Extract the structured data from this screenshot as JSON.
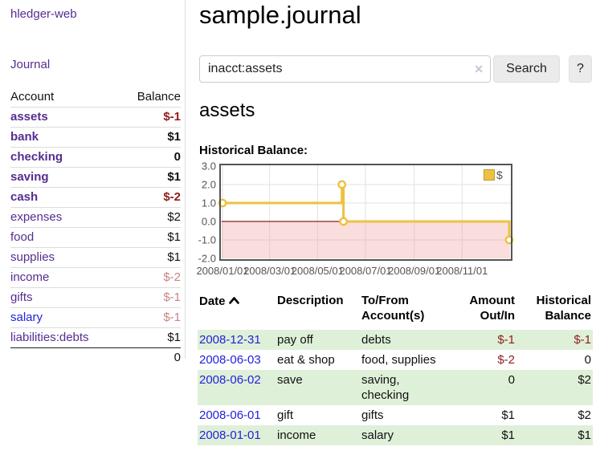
{
  "brand": "hledger-web",
  "nav": {
    "journal": "Journal"
  },
  "sidebar": {
    "headers": {
      "account": "Account",
      "balance": "Balance"
    },
    "accounts": [
      {
        "name": "assets",
        "level": 1,
        "bold": true,
        "balance": "$-1",
        "link_style": "purple"
      },
      {
        "name": "bank",
        "level": 2,
        "bold": true,
        "balance": "$1",
        "link_style": "purple"
      },
      {
        "name": "checking",
        "level": 3,
        "bold": true,
        "balance": "0",
        "link_style": "purple"
      },
      {
        "name": "saving",
        "level": 3,
        "bold": true,
        "balance": "$1",
        "link_style": "purple"
      },
      {
        "name": "cash",
        "level": 2,
        "bold": true,
        "balance": "$-2",
        "link_style": "purple"
      },
      {
        "name": "expenses",
        "level": 1,
        "bold": false,
        "balance": "$2",
        "link_style": "purple"
      },
      {
        "name": "food",
        "level": 2,
        "bold": false,
        "balance": "$1",
        "link_style": "purple"
      },
      {
        "name": "supplies",
        "level": 2,
        "bold": false,
        "balance": "$1",
        "link_style": "purple"
      },
      {
        "name": "income",
        "level": 1,
        "bold": false,
        "balance": "$-2",
        "link_style": "purple"
      },
      {
        "name": "gifts",
        "level": 2,
        "bold": false,
        "balance": "$-1",
        "link_style": "purple"
      },
      {
        "name": "salary",
        "level": 2,
        "bold": false,
        "balance": "$-1",
        "link_style": "blue"
      },
      {
        "name": "liabilities:debts",
        "level": 1,
        "bold": false,
        "balance": "$1",
        "link_style": "purple"
      }
    ],
    "total": "0"
  },
  "header": {
    "title": "sample.journal"
  },
  "search": {
    "value": "inacct:assets",
    "button_label": "Search",
    "help_label": "?",
    "clear_icon": "✕"
  },
  "account_view": {
    "title": "assets",
    "chart_heading": "Historical Balance:"
  },
  "chart_data": {
    "type": "line",
    "mode": "steps",
    "title": "Historical Balance",
    "x": [
      "2008/01/01",
      "2008/06/01",
      "2008/06/03",
      "2008/12/31"
    ],
    "series": [
      {
        "name": "$",
        "color": "#edc240",
        "values": [
          1.0,
          2.0,
          0.0,
          -1.0
        ]
      }
    ],
    "xticks": [
      "2008/01/01",
      "2008/03/01",
      "2008/05/01",
      "2008/07/01",
      "2008/09/01",
      "2008/11/01"
    ],
    "yticks": [
      3.0,
      2.0,
      1.0,
      0.0,
      -1.0,
      -2.0
    ],
    "ylim": [
      -2.0,
      3.0
    ],
    "xlim": [
      "2008/01/01",
      "2008/12/31"
    ],
    "grid": true,
    "legend_position": "top-right",
    "legend": [
      {
        "label": "$",
        "color": "#edc240"
      }
    ],
    "negative_region_highlight": true,
    "zero_line_color": "#8b1a1a",
    "axis_text_color": "#545454"
  },
  "register": {
    "headers": {
      "date": "Date",
      "description": "Description",
      "accounts": "To/From Account(s)",
      "amount": "Amount Out/In",
      "balance": "Historical Balance"
    },
    "rows": [
      {
        "date": "2008-12-31",
        "description": "pay off",
        "accounts": "debts",
        "amount": "$-1",
        "balance": "$-1",
        "shaded": true
      },
      {
        "date": "2008-06-03",
        "description": "eat & shop",
        "accounts": "food, supplies",
        "amount": "$-2",
        "balance": "0",
        "shaded": false
      },
      {
        "date": "2008-06-02",
        "description": "save",
        "accounts": "saving, checking",
        "amount": "0",
        "balance": "$2",
        "shaded": true
      },
      {
        "date": "2008-06-01",
        "description": "gift",
        "accounts": "gifts",
        "amount": "$1",
        "balance": "$2",
        "shaded": false
      },
      {
        "date": "2008-01-01",
        "description": "income",
        "accounts": "salary",
        "amount": "$1",
        "balance": "$1",
        "shaded": true
      }
    ]
  }
}
